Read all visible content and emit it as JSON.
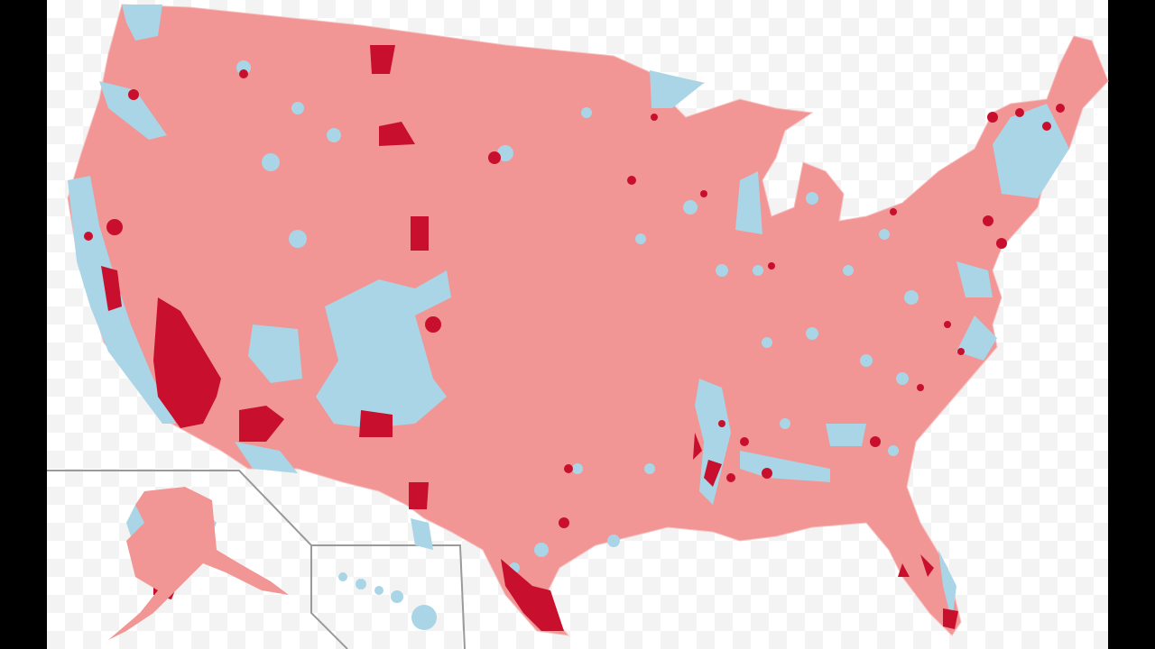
{
  "map": {
    "colors": {
      "republican_light": "#f19595",
      "democrat_light": "#a9d5e6",
      "republican_dark": "#c8102e",
      "inset_border": "#9a9a9a",
      "frame": "#000000"
    }
  }
}
